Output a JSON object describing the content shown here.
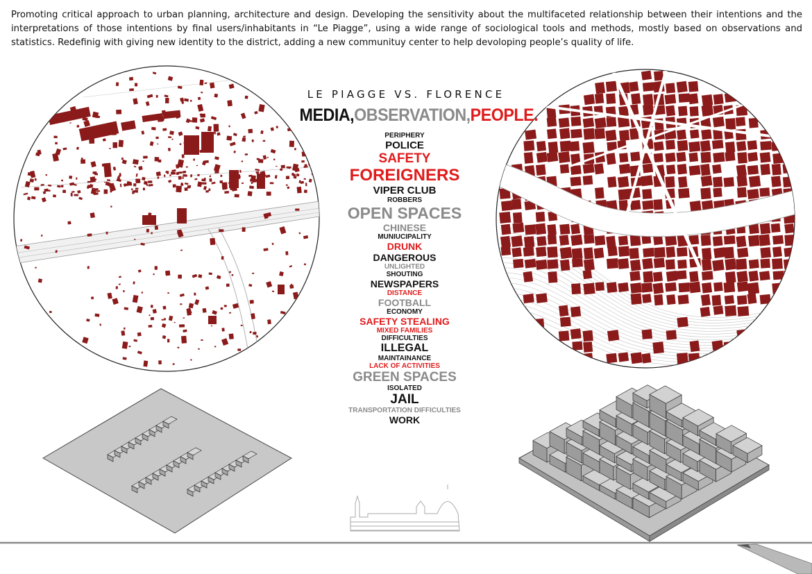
{
  "intro_text": "Promoting critical approach to urban planning, architecture and design. Developing the sensitivity about the multifaceted relationship between their intentions and the interpretations of those intentions by final users/inhabitants in “Le Piagge”, using a wide range of sociological tools and methods, mostly based on observations and statistics. Redefinig with giving new identity to the district, adding a new communituy center to help devoloping people’s quality of life.",
  "center": {
    "title": "LE PIAGGE VS. FLORENCE",
    "heading_part1": "MEDIA,",
    "heading_part2": "OBSERVATION,",
    "heading_part3": "PEOPLE."
  },
  "words": [
    {
      "text": "PERIPHERY",
      "color": "black",
      "size": 10
    },
    {
      "text": "POLICE",
      "color": "black",
      "size": 15
    },
    {
      "text": "SAFETY",
      "color": "red",
      "size": 19
    },
    {
      "text": "FOREIGNERS",
      "color": "red",
      "size": 24
    },
    {
      "text": "VIPER CLUB",
      "color": "black",
      "size": 15
    },
    {
      "text": "ROBBERS",
      "color": "black",
      "size": 10
    },
    {
      "text": "OPEN SPACES",
      "color": "gray",
      "size": 23
    },
    {
      "text": "CHINESE",
      "color": "gray",
      "size": 14
    },
    {
      "text": "MUNIUCIPALITY",
      "color": "black",
      "size": 10
    },
    {
      "text": "DRUNK",
      "color": "red",
      "size": 14
    },
    {
      "text": "DANGEROUS",
      "color": "black",
      "size": 14
    },
    {
      "text": "UNLIGHTED",
      "color": "gray",
      "size": 10
    },
    {
      "text": "SHOUTING",
      "color": "black",
      "size": 10
    },
    {
      "text": "NEWSPAPERS",
      "color": "black",
      "size": 14
    },
    {
      "text": "DISTANCE",
      "color": "red",
      "size": 10
    },
    {
      "text": "FOOTBALL",
      "color": "gray",
      "size": 14
    },
    {
      "text": "ECONOMY",
      "color": "black",
      "size": 10
    },
    {
      "text": "SAFETY STEALING",
      "color": "red",
      "size": 14
    },
    {
      "text": "MIXED FAMILIES",
      "color": "red",
      "size": 10
    },
    {
      "text": "DIFFICULTIES",
      "color": "black",
      "size": 10
    },
    {
      "text": "ILLEGAL",
      "color": "black",
      "size": 16
    },
    {
      "text": "MAINTAINANCE",
      "color": "black",
      "size": 10
    },
    {
      "text": "LACK OF ACTIVITIES",
      "color": "red",
      "size": 10
    },
    {
      "text": "GREEN SPACES",
      "color": "gray",
      "size": 19
    },
    {
      "text": "ISOLATED",
      "color": "black",
      "size": 10
    },
    {
      "text": "JAIL",
      "color": "black",
      "size": 19
    },
    {
      "text": "TRANSPORTATION DIFFICULTIES",
      "color": "gray",
      "size": 10
    },
    {
      "text": "WORK",
      "color": "black",
      "size": 14
    }
  ],
  "colors": {
    "map_red": "#8b1a1a",
    "accent_red": "#e01b1b",
    "gray_text": "#8a8a8a",
    "block_gray": "#c8c8c8"
  }
}
